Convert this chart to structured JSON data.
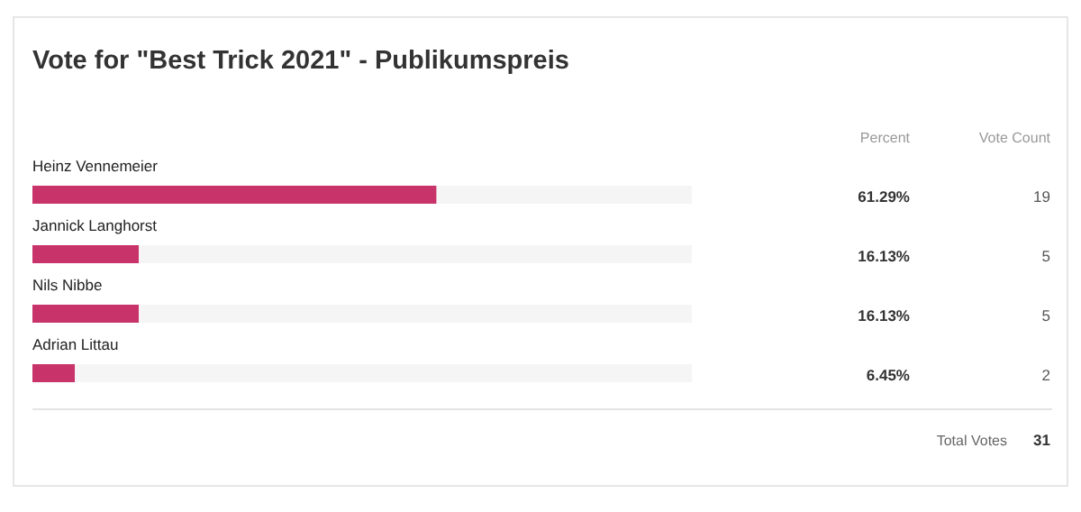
{
  "chart_data": {
    "type": "bar",
    "orientation": "horizontal",
    "stacked": true,
    "title": "Vote for \"Best Trick 2021\" - Publikumspreis",
    "categories": [
      "Heinz Vennemeier",
      "Jannick Langhorst",
      "Nils Nibbe",
      "Adrian Littau"
    ],
    "series": [
      {
        "color": "#c8336a",
        "values": [
          61.29,
          16.13,
          16.13,
          6.45
        ],
        "value_labels": [
          "61.29%",
          "16.13%",
          "16.13%",
          "6.45%"
        ]
      },
      {
        "color": "#f5f5f5",
        "values": [
          38.71,
          83.87,
          83.87,
          93.55
        ]
      }
    ],
    "xlim": [
      0,
      100
    ],
    "tick_labels": false,
    "annotations": [
      "Percent",
      "Vote Count",
      "Total Votes",
      "31",
      "19",
      "5",
      "5",
      "2"
    ]
  }
}
